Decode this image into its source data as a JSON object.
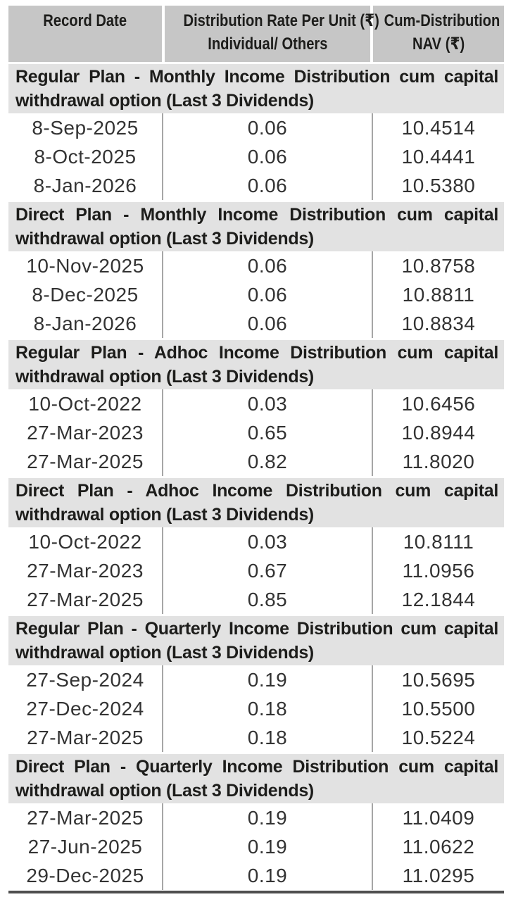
{
  "colors": {
    "header_bg": "#c6c6c6",
    "section_bg": "#e2e2e2",
    "divider": "#a6a6a6",
    "bottom_rule": "#4f4f4f"
  },
  "header": {
    "col1": "Record Date",
    "col2_line1": "Distribution Rate Per Unit (₹)",
    "col2_line2": "Individual/ Others",
    "col3_line1": "Cum-Distribution",
    "col3_line2": "NAV (₹)"
  },
  "sections": [
    {
      "title": "Regular Plan - Monthly Income Distribution cum capital withdrawal option (Last 3 Dividends)",
      "rows": [
        {
          "date": "8-Sep-2025",
          "rate": "0.06",
          "nav": "10.4514"
        },
        {
          "date": "8-Oct-2025",
          "rate": "0.06",
          "nav": "10.4441"
        },
        {
          "date": "8-Jan-2026",
          "rate": "0.06",
          "nav": "10.5380"
        }
      ]
    },
    {
      "title": "Direct Plan - Monthly Income Distribution cum capital withdrawal option (Last 3 Dividends)",
      "rows": [
        {
          "date": "10-Nov-2025",
          "rate": "0.06",
          "nav": "10.8758"
        },
        {
          "date": "8-Dec-2025",
          "rate": "0.06",
          "nav": "10.8811"
        },
        {
          "date": "8-Jan-2026",
          "rate": "0.06",
          "nav": "10.8834"
        }
      ]
    },
    {
      "title": "Regular Plan - Adhoc Income Distribution cum capital withdrawal option (Last 3 Dividends)",
      "rows": [
        {
          "date": "10-Oct-2022",
          "rate": "0.03",
          "nav": "10.6456"
        },
        {
          "date": "27-Mar-2023",
          "rate": "0.65",
          "nav": "10.8944"
        },
        {
          "date": "27-Mar-2025",
          "rate": "0.82",
          "nav": "11.8020"
        }
      ]
    },
    {
      "title": "Direct Plan - Adhoc Income Distribution cum capital withdrawal option (Last 3 Dividends)",
      "rows": [
        {
          "date": "10-Oct-2022",
          "rate": "0.03",
          "nav": "10.8111"
        },
        {
          "date": "27-Mar-2023",
          "rate": "0.67",
          "nav": "11.0956"
        },
        {
          "date": "27-Mar-2025",
          "rate": "0.85",
          "nav": "12.1844"
        }
      ]
    },
    {
      "title": "Regular Plan - Quarterly Income Distribution cum capital withdrawal option (Last 3 Dividends)",
      "rows": [
        {
          "date": "27-Sep-2024",
          "rate": "0.19",
          "nav": "10.5695"
        },
        {
          "date": "27-Dec-2024",
          "rate": "0.18",
          "nav": "10.5500"
        },
        {
          "date": "27-Mar-2025",
          "rate": "0.18",
          "nav": "10.5224"
        }
      ]
    },
    {
      "title": "Direct Plan - Quarterly Income Distribution cum capital withdrawal option (Last 3 Dividends)",
      "rows": [
        {
          "date": "27-Mar-2025",
          "rate": "0.19",
          "nav": "11.0409"
        },
        {
          "date": "27-Jun-2025",
          "rate": "0.19",
          "nav": "11.0622"
        },
        {
          "date": "29-Dec-2025",
          "rate": "0.19",
          "nav": "11.0295"
        }
      ]
    }
  ]
}
